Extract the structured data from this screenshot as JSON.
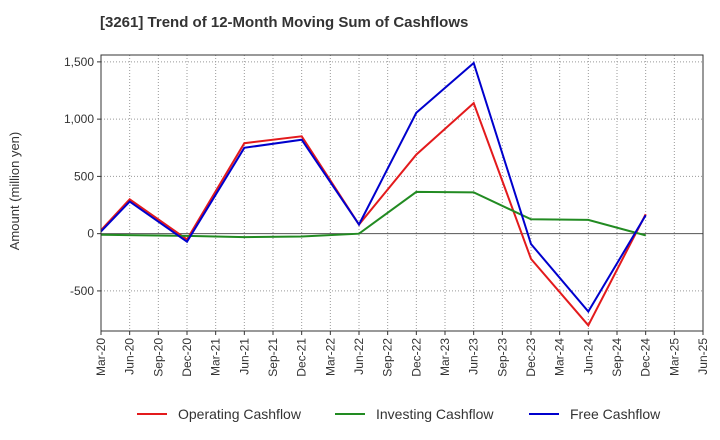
{
  "chart_data": {
    "type": "line",
    "title": "[3261]  Trend of 12-Month Moving Sum of Cashflows",
    "xlabel": "",
    "ylabel": "Amount (million yen)",
    "categories": [
      "Mar-20",
      "Jun-20",
      "Sep-20",
      "Dec-20",
      "Mar-21",
      "Jun-21",
      "Sep-21",
      "Dec-21",
      "Mar-22",
      "Jun-22",
      "Sep-22",
      "Dec-22",
      "Mar-23",
      "Jun-23",
      "Sep-23",
      "Dec-23",
      "Mar-24",
      "Jun-24",
      "Sep-24",
      "Dec-24",
      "Mar-25",
      "Jun-25"
    ],
    "ylim": [
      -850,
      1560
    ],
    "yticks": [
      1500,
      1000,
      500,
      0,
      -500
    ],
    "ytick_labels": [
      "1,500",
      "1,000",
      "500",
      "0",
      "-500"
    ],
    "grid": true,
    "legend_position": "bottom",
    "series": [
      {
        "name": "Operating Cashflow",
        "color": "#e31a1c",
        "values": [
          30,
          300,
          null,
          -50,
          null,
          790,
          null,
          850,
          null,
          80,
          null,
          690,
          null,
          1140,
          null,
          -220,
          null,
          -800,
          null,
          170,
          null,
          null
        ]
      },
      {
        "name": "Investing Cashflow",
        "color": "#228b22",
        "values": [
          -10,
          null,
          null,
          -20,
          null,
          -30,
          null,
          -25,
          null,
          0,
          null,
          365,
          null,
          360,
          null,
          125,
          null,
          120,
          null,
          -15,
          null,
          null
        ]
      },
      {
        "name": "Free Cashflow",
        "color": "#0000cd",
        "values": [
          20,
          280,
          null,
          -70,
          null,
          750,
          null,
          820,
          null,
          80,
          null,
          1055,
          null,
          1490,
          null,
          -90,
          null,
          -680,
          null,
          160,
          null,
          null
        ]
      }
    ]
  }
}
